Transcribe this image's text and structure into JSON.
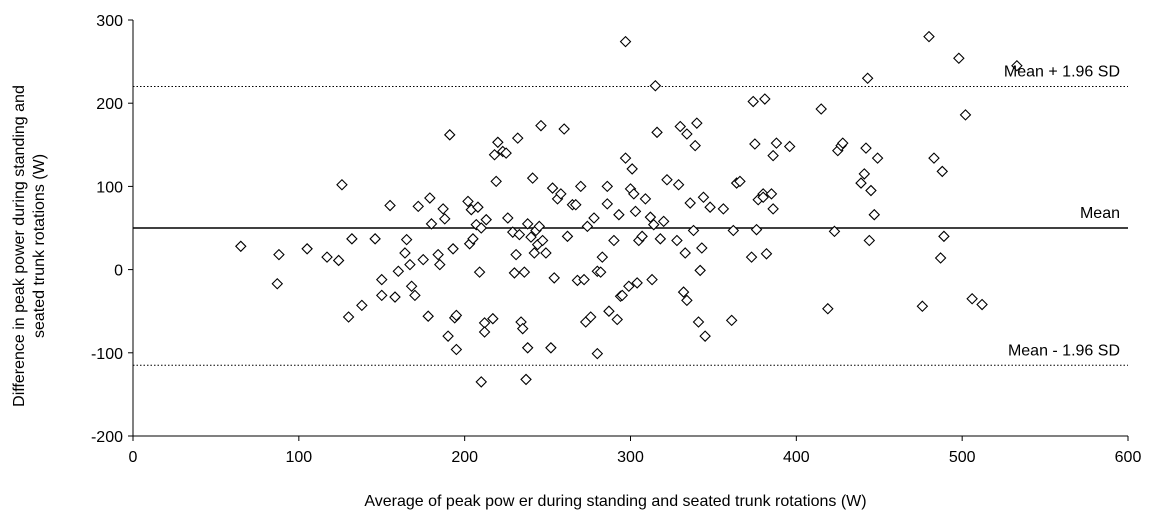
{
  "chart_data": {
    "type": "scatter",
    "title": "",
    "xlabel": "Average of peak pow er during standing and seated trunk rotations  (W)",
    "ylabel_line1": "Difference in peak power during standing and",
    "ylabel_line2": "seated trunk rotations (W)",
    "xlim": [
      0,
      600
    ],
    "ylim": [
      -200,
      300
    ],
    "x_ticks": [
      "0",
      "100",
      "200",
      "300",
      "400",
      "500",
      "600"
    ],
    "y_ticks": [
      "300",
      "200",
      "100",
      "0",
      "-100",
      "-200"
    ],
    "grid": false,
    "marker": "diamond",
    "reference_lines": [
      {
        "label": "Mean + 1.96 SD",
        "y": 220,
        "style": "dotted"
      },
      {
        "label": "Mean",
        "y": 50,
        "style": "solid"
      },
      {
        "label": "Mean - 1.96 SD",
        "y": -115,
        "style": "dotted"
      }
    ],
    "points": [
      [
        65,
        28
      ],
      [
        87,
        -17
      ],
      [
        88,
        18
      ],
      [
        105,
        25
      ],
      [
        117,
        15
      ],
      [
        124,
        11
      ],
      [
        126,
        102
      ],
      [
        130,
        -57
      ],
      [
        132,
        37
      ],
      [
        138,
        -43
      ],
      [
        146,
        37
      ],
      [
        150,
        -12
      ],
      [
        150,
        -31
      ],
      [
        155,
        77
      ],
      [
        158,
        -33
      ],
      [
        160,
        -2
      ],
      [
        164,
        20
      ],
      [
        165,
        36
      ],
      [
        167,
        6
      ],
      [
        168,
        -20
      ],
      [
        170,
        -31
      ],
      [
        172,
        76
      ],
      [
        175,
        12
      ],
      [
        178,
        -56
      ],
      [
        179,
        86
      ],
      [
        180,
        55
      ],
      [
        184,
        18
      ],
      [
        185,
        6
      ],
      [
        187,
        73
      ],
      [
        188,
        61
      ],
      [
        190,
        -80
      ],
      [
        191,
        162
      ],
      [
        193,
        25
      ],
      [
        194,
        -58
      ],
      [
        195,
        -55
      ],
      [
        195,
        -96
      ],
      [
        202,
        82
      ],
      [
        203,
        31
      ],
      [
        204,
        72
      ],
      [
        205,
        37
      ],
      [
        207,
        54
      ],
      [
        208,
        75
      ],
      [
        209,
        -3
      ],
      [
        210,
        -135
      ],
      [
        210,
        50
      ],
      [
        212,
        -64
      ],
      [
        212,
        -75
      ],
      [
        213,
        60
      ],
      [
        217,
        -59
      ],
      [
        218,
        138
      ],
      [
        219,
        106
      ],
      [
        220,
        153
      ],
      [
        223,
        142
      ],
      [
        225,
        140
      ],
      [
        226,
        62
      ],
      [
        229,
        45
      ],
      [
        230,
        -4
      ],
      [
        231,
        18
      ],
      [
        232,
        158
      ],
      [
        233,
        42
      ],
      [
        234,
        -63
      ],
      [
        235,
        -71
      ],
      [
        236,
        -3
      ],
      [
        237,
        -132
      ],
      [
        238,
        -94
      ],
      [
        238,
        55
      ],
      [
        240,
        39
      ],
      [
        241,
        110
      ],
      [
        242,
        20
      ],
      [
        243,
        47
      ],
      [
        244,
        30
      ],
      [
        245,
        52
      ],
      [
        246,
        173
      ],
      [
        247,
        35
      ],
      [
        249,
        20
      ],
      [
        252,
        -94
      ],
      [
        253,
        98
      ],
      [
        254,
        -10
      ],
      [
        256,
        85
      ],
      [
        258,
        91
      ],
      [
        260,
        169
      ],
      [
        262,
        40
      ],
      [
        265,
        78
      ],
      [
        267,
        78
      ],
      [
        268,
        -13
      ],
      [
        270,
        100
      ],
      [
        272,
        -12
      ],
      [
        273,
        -63
      ],
      [
        274,
        52
      ],
      [
        276,
        -57
      ],
      [
        278,
        62
      ],
      [
        280,
        -101
      ],
      [
        280,
        -2
      ],
      [
        282,
        -3
      ],
      [
        283,
        15
      ],
      [
        286,
        79
      ],
      [
        286,
        100
      ],
      [
        287,
        -50
      ],
      [
        290,
        35
      ],
      [
        292,
        -60
      ],
      [
        293,
        66
      ],
      [
        294,
        -32
      ],
      [
        295,
        -31
      ],
      [
        297,
        274
      ],
      [
        297,
        134
      ],
      [
        299,
        -20
      ],
      [
        300,
        97
      ],
      [
        301,
        121
      ],
      [
        302,
        91
      ],
      [
        303,
        70
      ],
      [
        304,
        -16
      ],
      [
        305,
        35
      ],
      [
        307,
        40
      ],
      [
        309,
        85
      ],
      [
        312,
        63
      ],
      [
        313,
        -12
      ],
      [
        314,
        54
      ],
      [
        315,
        221
      ],
      [
        316,
        165
      ],
      [
        318,
        37
      ],
      [
        320,
        58
      ],
      [
        322,
        108
      ],
      [
        328,
        35
      ],
      [
        329,
        102
      ],
      [
        330,
        172
      ],
      [
        332,
        -27
      ],
      [
        333,
        20
      ],
      [
        334,
        163
      ],
      [
        334,
        -37
      ],
      [
        336,
        80
      ],
      [
        338,
        47
      ],
      [
        339,
        149
      ],
      [
        340,
        176
      ],
      [
        341,
        -63
      ],
      [
        342,
        -1
      ],
      [
        343,
        26
      ],
      [
        344,
        87
      ],
      [
        345,
        -80
      ],
      [
        348,
        75
      ],
      [
        356,
        73
      ],
      [
        361,
        -61
      ],
      [
        362,
        47
      ],
      [
        364,
        104
      ],
      [
        366,
        106
      ],
      [
        373,
        15
      ],
      [
        374,
        202
      ],
      [
        375,
        151
      ],
      [
        376,
        48
      ],
      [
        377,
        84
      ],
      [
        380,
        91
      ],
      [
        380,
        87
      ],
      [
        381,
        205
      ],
      [
        382,
        19
      ],
      [
        385,
        91
      ],
      [
        386,
        73
      ],
      [
        386,
        137
      ],
      [
        388,
        152
      ],
      [
        396,
        148
      ],
      [
        415,
        193
      ],
      [
        419,
        -47
      ],
      [
        423,
        46
      ],
      [
        425,
        143
      ],
      [
        427,
        149
      ],
      [
        428,
        152
      ],
      [
        439,
        104
      ],
      [
        441,
        115
      ],
      [
        442,
        146
      ],
      [
        443,
        230
      ],
      [
        444,
        35
      ],
      [
        445,
        95
      ],
      [
        447,
        66
      ],
      [
        449,
        134
      ],
      [
        476,
        -44
      ],
      [
        480,
        280
      ],
      [
        483,
        134
      ],
      [
        487,
        14
      ],
      [
        488,
        118
      ],
      [
        489,
        40
      ],
      [
        498,
        254
      ],
      [
        502,
        186
      ],
      [
        506,
        -35
      ],
      [
        512,
        -42
      ],
      [
        533,
        245
      ]
    ]
  }
}
